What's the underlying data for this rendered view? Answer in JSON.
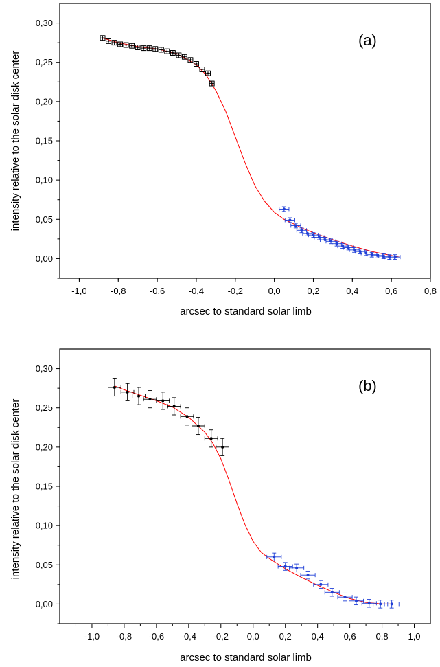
{
  "chart_data": [
    {
      "type": "scatter",
      "panel_label": "(a)",
      "xlabel": "arcsec to standard solar limb",
      "ylabel": "intensity relative to the solar disk center",
      "xlim": [
        -1.1,
        0.8
      ],
      "ylim": [
        -0.025,
        0.325
      ],
      "x_ticks": [
        "-1,0",
        "-0,8",
        "-0,6",
        "-0,4",
        "-0,2",
        "0,0",
        "0,2",
        "0,4",
        "0,6",
        "0,8"
      ],
      "y_ticks": [
        "0,00",
        "0,05",
        "0,10",
        "0,15",
        "0,20",
        "0,25",
        "0,30"
      ],
      "grid": false,
      "colors": {
        "inner": "#000000",
        "outer": "#1f3fd6",
        "fit": "#ff0000",
        "box": "#000000"
      },
      "series": [
        {
          "marker": "open-square",
          "color": "#000000",
          "x": [
            -0.88,
            -0.85,
            -0.82,
            -0.79,
            -0.76,
            -0.73,
            -0.7,
            -0.67,
            -0.64,
            -0.61,
            -0.58,
            -0.55,
            -0.52,
            -0.49,
            -0.46,
            -0.43,
            -0.4,
            -0.37,
            -0.34,
            -0.32
          ],
          "y": [
            0.281,
            0.277,
            0.275,
            0.273,
            0.272,
            0.271,
            0.269,
            0.268,
            0.268,
            0.267,
            0.266,
            0.264,
            0.262,
            0.259,
            0.257,
            0.253,
            0.248,
            0.241,
            0.236,
            0.223
          ],
          "xerr": 0.012,
          "yerr": 0.003
        },
        {
          "marker": "dot",
          "color": "#1f3fd6",
          "x": [
            0.05,
            0.08,
            0.11,
            0.14,
            0.17,
            0.2,
            0.23,
            0.26,
            0.29,
            0.32,
            0.35,
            0.38,
            0.41,
            0.44,
            0.47,
            0.5,
            0.53,
            0.56,
            0.59,
            0.62
          ],
          "y": [
            0.063,
            0.049,
            0.042,
            0.036,
            0.032,
            0.03,
            0.027,
            0.024,
            0.022,
            0.019,
            0.016,
            0.014,
            0.011,
            0.009,
            0.007,
            0.005,
            0.004,
            0.003,
            0.002,
            0.002
          ],
          "xerr": 0.025,
          "yerr": 0.003
        }
      ],
      "fit": {
        "color": "#ff0000",
        "x": [
          -0.88,
          -0.8,
          -0.7,
          -0.6,
          -0.5,
          -0.4,
          -0.35,
          -0.3,
          -0.25,
          -0.2,
          -0.15,
          -0.1,
          -0.05,
          0.0,
          0.05,
          0.1,
          0.15,
          0.2,
          0.3,
          0.4,
          0.5,
          0.6,
          0.64
        ],
        "y": [
          0.281,
          0.275,
          0.27,
          0.267,
          0.261,
          0.247,
          0.234,
          0.214,
          0.188,
          0.155,
          0.122,
          0.093,
          0.073,
          0.059,
          0.05,
          0.044,
          0.038,
          0.033,
          0.024,
          0.016,
          0.009,
          0.004,
          0.002
        ]
      }
    },
    {
      "type": "scatter",
      "panel_label": "(b)",
      "xlabel": "arcsec to standard solar limb",
      "ylabel": "intensity relative to the solar disk center",
      "xlim": [
        -1.2,
        1.1
      ],
      "ylim": [
        -0.025,
        0.325
      ],
      "x_ticks": [
        "-1,0",
        "-0,8",
        "-0,6",
        "-0,4",
        "-0,2",
        "0,0",
        "0,2",
        "0,4",
        "0,6",
        "0,8",
        "1,0"
      ],
      "y_ticks": [
        "0,00",
        "0,05",
        "0,10",
        "0,15",
        "0,20",
        "0,25",
        "0,30"
      ],
      "grid": false,
      "colors": {
        "inner": "#000000",
        "outer": "#1f3fd6",
        "fit": "#ff0000",
        "box": "#000000"
      },
      "series": [
        {
          "marker": "dot",
          "color": "#000000",
          "x": [
            -0.86,
            -0.78,
            -0.71,
            -0.64,
            -0.56,
            -0.49,
            -0.41,
            -0.34,
            -0.26,
            -0.19
          ],
          "y": [
            0.276,
            0.27,
            0.265,
            0.261,
            0.259,
            0.252,
            0.239,
            0.227,
            0.211,
            0.2
          ],
          "xerr": 0.04,
          "yerr": 0.011
        },
        {
          "marker": "dot",
          "color": "#1f3fd6",
          "x": [
            0.13,
            0.2,
            0.27,
            0.34,
            0.42,
            0.49,
            0.57,
            0.64,
            0.72,
            0.79,
            0.86
          ],
          "y": [
            0.06,
            0.048,
            0.046,
            0.037,
            0.025,
            0.015,
            0.009,
            0.004,
            0.001,
            0.0,
            0.0
          ],
          "xerr": 0.045,
          "yerr": 0.005
        }
      ],
      "fit": {
        "color": "#ff0000",
        "x": [
          -0.86,
          -0.8,
          -0.7,
          -0.6,
          -0.5,
          -0.4,
          -0.3,
          -0.25,
          -0.2,
          -0.15,
          -0.1,
          -0.05,
          0.0,
          0.05,
          0.1,
          0.2,
          0.3,
          0.4,
          0.5,
          0.6,
          0.7,
          0.8,
          0.86
        ],
        "y": [
          0.278,
          0.273,
          0.266,
          0.259,
          0.251,
          0.238,
          0.219,
          0.205,
          0.185,
          0.158,
          0.128,
          0.101,
          0.08,
          0.066,
          0.058,
          0.045,
          0.034,
          0.024,
          0.015,
          0.007,
          0.002,
          0.0,
          0.0
        ]
      }
    }
  ]
}
